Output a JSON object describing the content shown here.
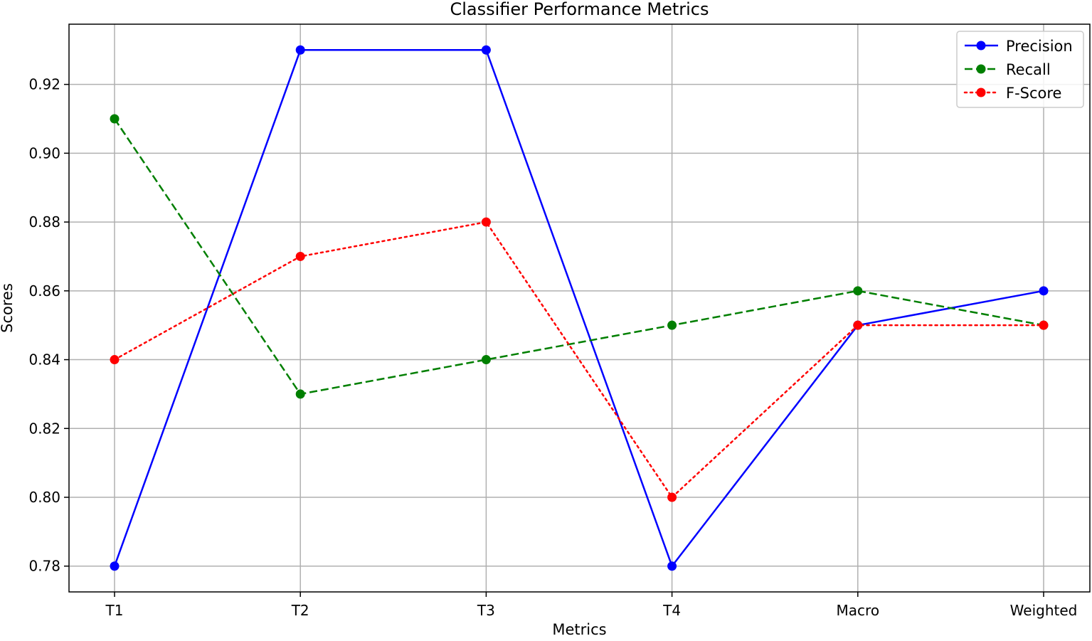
{
  "chart_data": {
    "type": "line",
    "title": "Classifier Performance Metrics",
    "xlabel": "Metrics",
    "ylabel": "Scores",
    "categories": [
      "T1",
      "T2",
      "T3",
      "T4",
      "Macro",
      "Weighted"
    ],
    "y_ticks": [
      "0.78",
      "0.80",
      "0.82",
      "0.84",
      "0.86",
      "0.88",
      "0.90",
      "0.92"
    ],
    "ylim": [
      0.7725,
      0.9375
    ],
    "grid": true,
    "legend_position": "top-right",
    "series": [
      {
        "name": "Precision",
        "values": [
          0.78,
          0.93,
          0.93,
          0.78,
          0.85,
          0.86
        ],
        "color": "#0000ff",
        "line_style": "solid",
        "marker": "circle"
      },
      {
        "name": "Recall",
        "values": [
          0.91,
          0.83,
          0.84,
          0.85,
          0.86,
          0.85
        ],
        "color": "#007f00",
        "line_style": "dashed",
        "marker": "circle"
      },
      {
        "name": "F-Score",
        "values": [
          0.84,
          0.87,
          0.88,
          0.8,
          0.85,
          0.85
        ],
        "color": "#ff0000",
        "line_style": "dotted",
        "marker": "circle"
      }
    ]
  }
}
